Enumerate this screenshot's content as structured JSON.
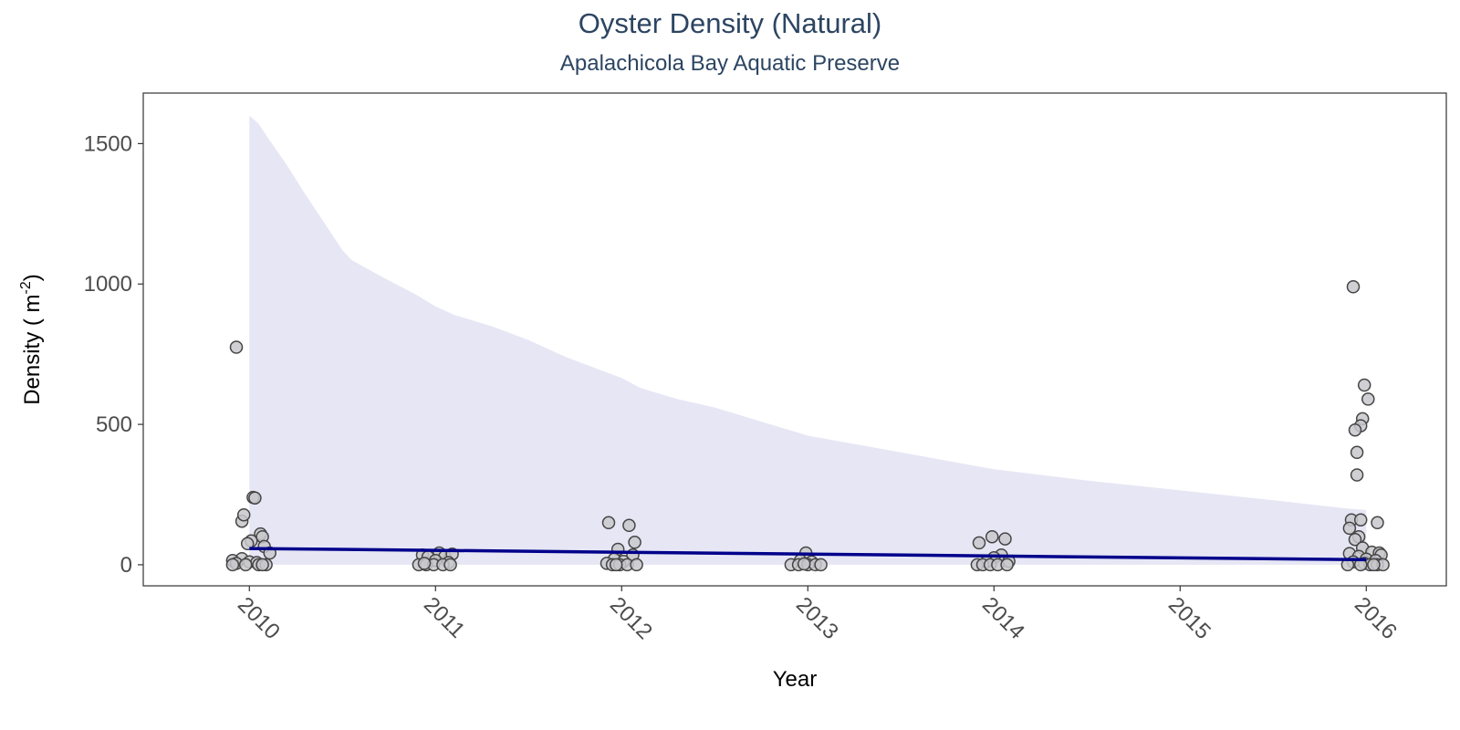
{
  "chart_data": {
    "type": "scatter",
    "title": "Oyster Density (Natural)",
    "subtitle": "Apalachicola Bay Aquatic Preserve",
    "xlabel": "Year",
    "ylabel": "Density ( m⁻²)",
    "xlim": [
      2009.43,
      2016.43
    ],
    "ylim": [
      -75,
      1680
    ],
    "x_ticks": [
      2010,
      2011,
      2012,
      2013,
      2014,
      2015,
      2016
    ],
    "y_ticks": [
      0,
      500,
      1000,
      1500
    ],
    "grid": false,
    "colors": {
      "points_fill": "#c8c8cc",
      "points_stroke": "#454545",
      "trend_line": "#00008b",
      "ribbon": "#e6e6f5",
      "title": "#2c4562"
    },
    "trend": {
      "x": [
        2010,
        2016
      ],
      "y": [
        58,
        18
      ]
    },
    "ribbon": {
      "x": [
        2010,
        2010.05,
        2010.1,
        2010.2,
        2010.3,
        2010.4,
        2010.5,
        2010.55,
        2010.7,
        2010.9,
        2011.0,
        2011.1,
        2011.2,
        2011.3,
        2011.5,
        2011.7,
        2011.9,
        2012.0,
        2012.1,
        2012.2,
        2012.3,
        2012.5,
        2012.8,
        2013.0,
        2013.5,
        2014.0,
        2014.5,
        2015.0,
        2015.5,
        2015.9,
        2016
      ],
      "upper": [
        1600,
        1570,
        1520,
        1425,
        1320,
        1220,
        1120,
        1085,
        1030,
        960,
        920,
        890,
        870,
        850,
        800,
        740,
        690,
        665,
        630,
        610,
        590,
        560,
        500,
        460,
        400,
        340,
        300,
        265,
        230,
        200,
        195
      ],
      "lower": [
        0,
        0,
        0,
        0,
        0,
        0,
        0,
        0,
        0,
        0,
        0,
        0,
        0,
        0,
        0,
        0,
        0,
        0,
        0,
        0,
        0,
        0,
        0,
        0,
        0,
        0,
        0,
        0,
        0,
        0,
        0
      ]
    },
    "points": [
      {
        "x": 2009.93,
        "y": 775
      },
      {
        "x": 2009.96,
        "y": 155
      },
      {
        "x": 2009.97,
        "y": 178
      },
      {
        "x": 2010.02,
        "y": 240
      },
      {
        "x": 2010.03,
        "y": 238
      },
      {
        "x": 2010.06,
        "y": 110
      },
      {
        "x": 2010.07,
        "y": 100
      },
      {
        "x": 2010.01,
        "y": 85
      },
      {
        "x": 2009.99,
        "y": 75
      },
      {
        "x": 2010.08,
        "y": 65
      },
      {
        "x": 2010.11,
        "y": 42
      },
      {
        "x": 2009.96,
        "y": 22
      },
      {
        "x": 2009.91,
        "y": 15
      },
      {
        "x": 2010.0,
        "y": 10
      },
      {
        "x": 2010.04,
        "y": 8
      },
      {
        "x": 2009.93,
        "y": 5
      },
      {
        "x": 2010.05,
        "y": 0
      },
      {
        "x": 2009.91,
        "y": 0
      },
      {
        "x": 2010.09,
        "y": 0
      },
      {
        "x": 2009.98,
        "y": 0
      },
      {
        "x": 2010.07,
        "y": 0
      },
      {
        "x": 2010.93,
        "y": 35
      },
      {
        "x": 2010.96,
        "y": 28
      },
      {
        "x": 2011.02,
        "y": 42
      },
      {
        "x": 2011.05,
        "y": 30
      },
      {
        "x": 2011.09,
        "y": 38
      },
      {
        "x": 2011.0,
        "y": 15
      },
      {
        "x": 2011.07,
        "y": 8
      },
      {
        "x": 2010.91,
        "y": 0
      },
      {
        "x": 2010.95,
        "y": 0
      },
      {
        "x": 2010.99,
        "y": 0
      },
      {
        "x": 2011.04,
        "y": 0
      },
      {
        "x": 2011.08,
        "y": 0
      },
      {
        "x": 2010.94,
        "y": 5
      },
      {
        "x": 2011.93,
        "y": 150
      },
      {
        "x": 2012.04,
        "y": 140
      },
      {
        "x": 2012.07,
        "y": 80
      },
      {
        "x": 2011.98,
        "y": 55
      },
      {
        "x": 2012.06,
        "y": 35
      },
      {
        "x": 2011.96,
        "y": 20
      },
      {
        "x": 2012.01,
        "y": 12
      },
      {
        "x": 2011.92,
        "y": 5
      },
      {
        "x": 2011.95,
        "y": 0
      },
      {
        "x": 2011.99,
        "y": 0
      },
      {
        "x": 2012.03,
        "y": 0
      },
      {
        "x": 2012.08,
        "y": 0
      },
      {
        "x": 2011.97,
        "y": 0
      },
      {
        "x": 2012.99,
        "y": 42
      },
      {
        "x": 2012.96,
        "y": 15
      },
      {
        "x": 2013.02,
        "y": 10
      },
      {
        "x": 2012.91,
        "y": 0
      },
      {
        "x": 2012.95,
        "y": 0
      },
      {
        "x": 2013.0,
        "y": 0
      },
      {
        "x": 2013.04,
        "y": 0
      },
      {
        "x": 2013.07,
        "y": 0
      },
      {
        "x": 2012.98,
        "y": 3
      },
      {
        "x": 2013.92,
        "y": 78
      },
      {
        "x": 2013.99,
        "y": 100
      },
      {
        "x": 2014.06,
        "y": 92
      },
      {
        "x": 2014.04,
        "y": 35
      },
      {
        "x": 2014.0,
        "y": 25
      },
      {
        "x": 2013.96,
        "y": 10
      },
      {
        "x": 2014.08,
        "y": 12
      },
      {
        "x": 2013.91,
        "y": 0
      },
      {
        "x": 2013.94,
        "y": 0
      },
      {
        "x": 2013.98,
        "y": 0
      },
      {
        "x": 2014.02,
        "y": 0
      },
      {
        "x": 2014.07,
        "y": 0
      },
      {
        "x": 2015.93,
        "y": 990
      },
      {
        "x": 2015.99,
        "y": 640
      },
      {
        "x": 2016.01,
        "y": 590
      },
      {
        "x": 2015.98,
        "y": 520
      },
      {
        "x": 2015.97,
        "y": 495
      },
      {
        "x": 2015.94,
        "y": 480
      },
      {
        "x": 2015.95,
        "y": 400
      },
      {
        "x": 2015.95,
        "y": 320
      },
      {
        "x": 2015.92,
        "y": 160
      },
      {
        "x": 2015.97,
        "y": 160
      },
      {
        "x": 2016.06,
        "y": 150
      },
      {
        "x": 2015.91,
        "y": 130
      },
      {
        "x": 2015.96,
        "y": 100
      },
      {
        "x": 2015.94,
        "y": 90
      },
      {
        "x": 2015.98,
        "y": 60
      },
      {
        "x": 2016.03,
        "y": 45
      },
      {
        "x": 2016.07,
        "y": 42
      },
      {
        "x": 2015.91,
        "y": 40
      },
      {
        "x": 2015.96,
        "y": 30
      },
      {
        "x": 2016.08,
        "y": 35
      },
      {
        "x": 2016.0,
        "y": 20
      },
      {
        "x": 2016.05,
        "y": 15
      },
      {
        "x": 2015.93,
        "y": 10
      },
      {
        "x": 2015.99,
        "y": 5
      },
      {
        "x": 2016.02,
        "y": 0
      },
      {
        "x": 2016.06,
        "y": 0
      },
      {
        "x": 2015.9,
        "y": 0
      },
      {
        "x": 2015.97,
        "y": 0
      },
      {
        "x": 2016.09,
        "y": 0
      },
      {
        "x": 2016.04,
        "y": 0
      }
    ]
  }
}
